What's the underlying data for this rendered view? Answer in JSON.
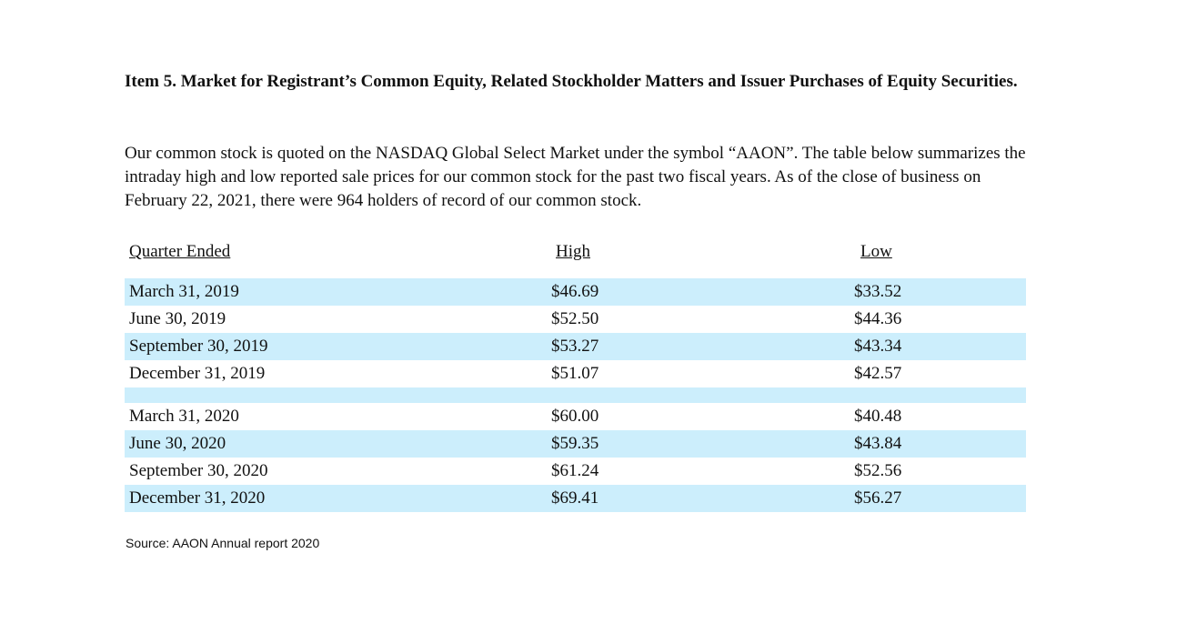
{
  "document": {
    "heading": "Item 5.  Market for Registrant’s Common Equity, Related Stockholder Matters and Issuer Purchases of Equity Securities.",
    "paragraph": "Our common stock is quoted on the NASDAQ Global Select Market under the symbol “AAON”. The table below summarizes the intraday high and low reported sale prices for our common stock for the past two fiscal years. As of the close of business on February 22, 2021, there were 964 holders of record of our common stock.",
    "source": "Source: AAON Annual report 2020"
  },
  "table": {
    "headers": [
      "Quarter Ended",
      "High",
      "Low"
    ],
    "group_2019": [
      {
        "quarter": "March 31, 2019",
        "high": "$46.69",
        "low": "$33.52"
      },
      {
        "quarter": "June 30, 2019",
        "high": "$52.50",
        "low": "$44.36"
      },
      {
        "quarter": "September 30, 2019",
        "high": "$53.27",
        "low": "$43.34"
      },
      {
        "quarter": "December 31, 2019",
        "high": "$51.07",
        "low": "$42.57"
      }
    ],
    "group_2020": [
      {
        "quarter": "March 31, 2020",
        "high": "$60.00",
        "low": "$40.48"
      },
      {
        "quarter": "June 30, 2020",
        "high": "$59.35",
        "low": "$43.84"
      },
      {
        "quarter": "September 30, 2020",
        "high": "$61.24",
        "low": "$52.56"
      },
      {
        "quarter": "December 31, 2020",
        "high": "$69.41",
        "low": "$56.27"
      }
    ]
  },
  "colors": {
    "row_shade": "#cceefc",
    "text": "#111111"
  }
}
